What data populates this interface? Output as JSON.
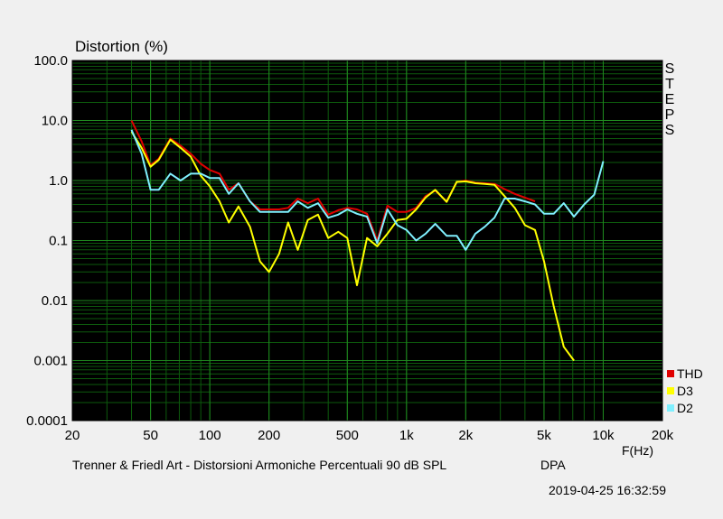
{
  "chart_data": {
    "type": "line",
    "title": "Distortion (%)",
    "xlabel": "F(Hz)",
    "x_scale": "log",
    "y_scale": "log",
    "xlim": [
      20,
      20000
    ],
    "ylim": [
      0.0001,
      100
    ],
    "x_ticks": [
      {
        "value": 20,
        "label": "20"
      },
      {
        "value": 50,
        "label": "50"
      },
      {
        "value": 100,
        "label": "100"
      },
      {
        "value": 200,
        "label": "200"
      },
      {
        "value": 500,
        "label": "500"
      },
      {
        "value": 1000,
        "label": "1k"
      },
      {
        "value": 2000,
        "label": "2k"
      },
      {
        "value": 5000,
        "label": "5k"
      },
      {
        "value": 10000,
        "label": "10k"
      },
      {
        "value": 20000,
        "label": "20k"
      }
    ],
    "y_ticks": [
      {
        "value": 100,
        "label": "100.0"
      },
      {
        "value": 10,
        "label": "10.0"
      },
      {
        "value": 1,
        "label": "1.0"
      },
      {
        "value": 0.1,
        "label": "0.1"
      },
      {
        "value": 0.01,
        "label": "0.01"
      },
      {
        "value": 0.001,
        "label": "0.001"
      },
      {
        "value": 0.0001,
        "label": "0.0001"
      }
    ],
    "grid": true,
    "legend_position": "bottom-right",
    "side_label": "STEPS",
    "series": [
      {
        "name": "THD",
        "color": "#e00000",
        "points": [
          [
            40,
            10
          ],
          [
            45,
            4.5
          ],
          [
            50,
            1.8
          ],
          [
            55,
            2.3
          ],
          [
            63,
            5
          ],
          [
            71,
            3.8
          ],
          [
            80,
            2.8
          ],
          [
            90,
            1.9
          ],
          [
            100,
            1.5
          ],
          [
            112,
            1.3
          ],
          [
            125,
            0.7
          ],
          [
            140,
            0.9
          ],
          [
            160,
            0.45
          ],
          [
            180,
            0.33
          ],
          [
            200,
            0.33
          ],
          [
            225,
            0.33
          ],
          [
            250,
            0.35
          ],
          [
            280,
            0.5
          ],
          [
            315,
            0.42
          ],
          [
            355,
            0.5
          ],
          [
            400,
            0.27
          ],
          [
            450,
            0.32
          ],
          [
            500,
            0.35
          ],
          [
            560,
            0.33
          ],
          [
            630,
            0.28
          ],
          [
            710,
            0.1
          ],
          [
            800,
            0.38
          ],
          [
            900,
            0.3
          ],
          [
            1000,
            0.3
          ],
          [
            1120,
            0.35
          ],
          [
            1250,
            0.55
          ],
          [
            1400,
            0.68
          ],
          [
            1600,
            0.45
          ],
          [
            1800,
            0.95
          ],
          [
            2000,
            1
          ],
          [
            2240,
            0.92
          ],
          [
            2500,
            0.9
          ],
          [
            2800,
            0.88
          ],
          [
            3150,
            0.72
          ],
          [
            3550,
            0.6
          ],
          [
            4000,
            0.52
          ],
          [
            4500,
            0.45
          ]
        ]
      },
      {
        "name": "D3",
        "color": "#ffff00",
        "points": [
          [
            40,
            6.5
          ],
          [
            45,
            3.5
          ],
          [
            50,
            1.7
          ],
          [
            55,
            2.2
          ],
          [
            63,
            4.8
          ],
          [
            71,
            3.5
          ],
          [
            80,
            2.5
          ],
          [
            90,
            1.2
          ],
          [
            100,
            0.8
          ],
          [
            112,
            0.45
          ],
          [
            125,
            0.2
          ],
          [
            140,
            0.37
          ],
          [
            160,
            0.17
          ],
          [
            180,
            0.045
          ],
          [
            200,
            0.03
          ],
          [
            225,
            0.06
          ],
          [
            250,
            0.2
          ],
          [
            280,
            0.07
          ],
          [
            315,
            0.22
          ],
          [
            355,
            0.27
          ],
          [
            400,
            0.11
          ],
          [
            450,
            0.14
          ],
          [
            500,
            0.11
          ],
          [
            560,
            0.018
          ],
          [
            630,
            0.11
          ],
          [
            710,
            0.08
          ],
          [
            800,
            0.13
          ],
          [
            900,
            0.22
          ],
          [
            1000,
            0.23
          ],
          [
            1120,
            0.33
          ],
          [
            1250,
            0.52
          ],
          [
            1400,
            0.7
          ],
          [
            1600,
            0.44
          ],
          [
            1800,
            0.95
          ],
          [
            2000,
            0.97
          ],
          [
            2240,
            0.9
          ],
          [
            2500,
            0.88
          ],
          [
            2800,
            0.85
          ],
          [
            3150,
            0.55
          ],
          [
            3550,
            0.35
          ],
          [
            4000,
            0.18
          ],
          [
            4500,
            0.15
          ],
          [
            5000,
            0.045
          ],
          [
            5600,
            0.008
          ],
          [
            6300,
            0.0017
          ],
          [
            7100,
            0.001
          ]
        ]
      },
      {
        "name": "D2",
        "color": "#80f0ff",
        "points": [
          [
            40,
            7
          ],
          [
            45,
            2.8
          ],
          [
            50,
            0.7
          ],
          [
            55,
            0.7
          ],
          [
            63,
            1.3
          ],
          [
            71,
            1
          ],
          [
            80,
            1.3
          ],
          [
            90,
            1.3
          ],
          [
            100,
            1.1
          ],
          [
            112,
            1.1
          ],
          [
            125,
            0.6
          ],
          [
            140,
            0.9
          ],
          [
            160,
            0.45
          ],
          [
            180,
            0.3
          ],
          [
            200,
            0.3
          ],
          [
            225,
            0.3
          ],
          [
            250,
            0.3
          ],
          [
            280,
            0.45
          ],
          [
            315,
            0.35
          ],
          [
            355,
            0.42
          ],
          [
            400,
            0.24
          ],
          [
            450,
            0.27
          ],
          [
            500,
            0.33
          ],
          [
            560,
            0.28
          ],
          [
            630,
            0.25
          ],
          [
            710,
            0.09
          ],
          [
            800,
            0.33
          ],
          [
            900,
            0.18
          ],
          [
            1000,
            0.15
          ],
          [
            1120,
            0.1
          ],
          [
            1250,
            0.13
          ],
          [
            1400,
            0.19
          ],
          [
            1600,
            0.12
          ],
          [
            1800,
            0.12
          ],
          [
            2000,
            0.07
          ],
          [
            2240,
            0.13
          ],
          [
            2500,
            0.17
          ],
          [
            2800,
            0.24
          ],
          [
            3150,
            0.5
          ],
          [
            3550,
            0.5
          ],
          [
            4000,
            0.45
          ],
          [
            4500,
            0.4
          ],
          [
            5000,
            0.28
          ],
          [
            5600,
            0.28
          ],
          [
            6300,
            0.42
          ],
          [
            7100,
            0.25
          ],
          [
            8000,
            0.4
          ],
          [
            9000,
            0.58
          ],
          [
            10000,
            2.1
          ]
        ]
      }
    ]
  },
  "footer": {
    "caption": "Trenner & Friedl Art - Distorsioni Armoniche Percentuali 90 dB SPL",
    "product": "DPA",
    "timestamp": "2019-04-25 16:32:59"
  }
}
